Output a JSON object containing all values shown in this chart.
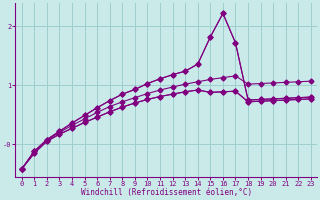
{
  "xlabel": "Windchill (Refroidissement éolien,°C)",
  "bg_color": "#caeaea",
  "line_color": "#800080",
  "grid_color": "#9ecece",
  "xlim": [
    -0.5,
    23.5
  ],
  "ylim": [
    -0.55,
    2.4
  ],
  "yticks": [
    0.0,
    1.0,
    2.0
  ],
  "ytick_labels": [
    "-0",
    "1",
    "2"
  ],
  "xticks": [
    0,
    1,
    2,
    3,
    4,
    5,
    6,
    7,
    8,
    9,
    10,
    11,
    12,
    13,
    14,
    15,
    16,
    17,
    18,
    19,
    20,
    21,
    22,
    23
  ],
  "series": [
    [
      -0.42,
      -0.15,
      0.05,
      0.17,
      0.27,
      0.37,
      0.46,
      0.55,
      0.63,
      0.7,
      0.76,
      0.81,
      0.85,
      0.89,
      0.92,
      0.88,
      0.89,
      0.9,
      0.72,
      0.73,
      0.74,
      0.75,
      0.76,
      0.77
    ],
    [
      -0.42,
      -0.15,
      0.05,
      0.17,
      0.27,
      0.37,
      0.46,
      0.55,
      0.63,
      0.7,
      0.76,
      0.81,
      0.85,
      0.89,
      0.92,
      0.88,
      0.89,
      0.9,
      0.72,
      0.73,
      0.74,
      0.75,
      0.76,
      0.77
    ],
    [
      -0.42,
      -0.12,
      0.07,
      0.2,
      0.32,
      0.43,
      0.54,
      0.64,
      0.72,
      0.79,
      0.86,
      0.92,
      0.97,
      1.02,
      1.06,
      1.1,
      1.13,
      1.16,
      1.02,
      1.03,
      1.04,
      1.05,
      1.06,
      1.07
    ],
    [
      -0.42,
      -0.12,
      0.08,
      0.22,
      0.36,
      0.49,
      0.62,
      0.74,
      0.85,
      0.93,
      1.03,
      1.11,
      1.18,
      1.24,
      1.36,
      1.82,
      2.22,
      1.72,
      0.75,
      0.76,
      0.77,
      0.78,
      0.79,
      0.8
    ],
    [
      -0.42,
      -0.12,
      0.08,
      0.22,
      0.36,
      0.49,
      0.62,
      0.74,
      0.85,
      0.93,
      1.03,
      1.11,
      1.18,
      1.24,
      1.36,
      1.82,
      2.22,
      1.72,
      0.75,
      0.76,
      0.77,
      0.78,
      0.79,
      0.8
    ]
  ],
  "marker": "D",
  "markersize": 2.5,
  "linewidth": 0.8
}
